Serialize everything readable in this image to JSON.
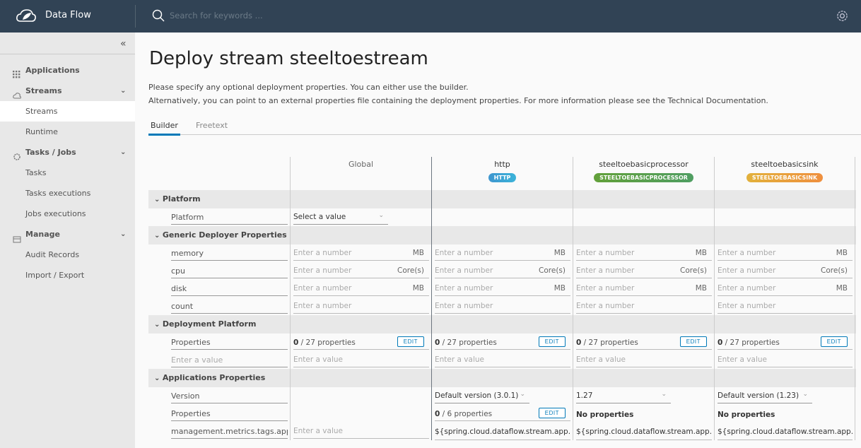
{
  "header": {
    "brand": "Data Flow",
    "search_placeholder": "Search for keywords ..."
  },
  "sidebar": {
    "items": [
      {
        "label": "Applications",
        "type": "group",
        "icon": "grid-icon"
      },
      {
        "label": "Streams",
        "type": "group",
        "icon": "cloud-icon",
        "expanded": true
      },
      {
        "label": "Streams",
        "type": "sub",
        "active": true
      },
      {
        "label": "Runtime",
        "type": "sub"
      },
      {
        "label": "Tasks / Jobs",
        "type": "group",
        "icon": "tasks-icon",
        "expanded": true
      },
      {
        "label": "Tasks",
        "type": "sub"
      },
      {
        "label": "Tasks executions",
        "type": "sub"
      },
      {
        "label": "Jobs executions",
        "type": "sub"
      },
      {
        "label": "Manage",
        "type": "group",
        "icon": "manage-icon",
        "expanded": true
      },
      {
        "label": "Audit Records",
        "type": "sub"
      },
      {
        "label": "Import / Export",
        "type": "sub"
      }
    ]
  },
  "page": {
    "title": "Deploy stream steeltoestream",
    "desc1": "Please specify any optional deployment properties. You can either use the builder.",
    "desc2": "Alternatively, you can point to an external properties file containing the deployment properties. For more information please see the Technical Documentation.",
    "tabs": [
      {
        "label": "Builder",
        "active": true
      },
      {
        "label": "Freetext"
      }
    ]
  },
  "grid": {
    "columns": [
      {
        "title": "Global"
      },
      {
        "title": "http",
        "badge": "HTTP",
        "colors": [
          "#3f96cf",
          "#3bb3d9"
        ]
      },
      {
        "title": "steeltoebasicprocessor",
        "badge": "STEELTOEBASICPROCESSOR",
        "colors": [
          "#62a03a",
          "#4f9e62"
        ]
      },
      {
        "title": "steeltoebasicsink",
        "badge": "STEELTOEBASICSINK",
        "colors": [
          "#e2b13c",
          "#ef8f3e"
        ]
      }
    ],
    "sections": [
      {
        "title": "Platform",
        "rows": [
          {
            "label": "Platform",
            "cells": [
              {
                "type": "select",
                "value": "Select a value"
              },
              {},
              {},
              {}
            ]
          }
        ]
      },
      {
        "title": "Generic Deployer Properties",
        "rows": [
          {
            "label": "memory",
            "cells": [
              {
                "type": "input",
                "placeholder": "Enter a number",
                "unit": "MB"
              },
              {
                "type": "input",
                "placeholder": "Enter a number",
                "unit": "MB"
              },
              {
                "type": "input",
                "placeholder": "Enter a number",
                "unit": "MB"
              },
              {
                "type": "input",
                "placeholder": "Enter a number",
                "unit": "MB"
              }
            ]
          },
          {
            "label": "cpu",
            "cells": [
              {
                "type": "input",
                "placeholder": "Enter a number",
                "unit": "Core(s)"
              },
              {
                "type": "input",
                "placeholder": "Enter a number",
                "unit": "Core(s)"
              },
              {
                "type": "input",
                "placeholder": "Enter a number",
                "unit": "Core(s)"
              },
              {
                "type": "input",
                "placeholder": "Enter a number",
                "unit": "Core(s)"
              }
            ]
          },
          {
            "label": "disk",
            "cells": [
              {
                "type": "input",
                "placeholder": "Enter a number",
                "unit": "MB"
              },
              {
                "type": "input",
                "placeholder": "Enter a number",
                "unit": "MB"
              },
              {
                "type": "input",
                "placeholder": "Enter a number",
                "unit": "MB"
              },
              {
                "type": "input",
                "placeholder": "Enter a number",
                "unit": "MB"
              }
            ]
          },
          {
            "label": "count",
            "cells": [
              {
                "type": "input",
                "placeholder": "Enter a number"
              },
              {
                "type": "input",
                "placeholder": "Enter a number"
              },
              {
                "type": "input",
                "placeholder": "Enter a number"
              },
              {
                "type": "input",
                "placeholder": "Enter a number"
              }
            ]
          }
        ]
      },
      {
        "title": "Deployment Platform",
        "rows": [
          {
            "label": "Properties",
            "cells": [
              {
                "type": "props",
                "count": "0",
                "rest": " / 27 properties",
                "edit": "EDIT"
              },
              {
                "type": "props",
                "count": "0",
                "rest": " / 27 properties",
                "edit": "EDIT"
              },
              {
                "type": "props",
                "count": "0",
                "rest": " / 27 properties",
                "edit": "EDIT"
              },
              {
                "type": "props",
                "count": "0",
                "rest": " / 27 properties",
                "edit": "EDIT"
              }
            ]
          },
          {
            "label_placeholder": "Enter a value",
            "cells": [
              {
                "type": "input",
                "placeholder": "Enter a value"
              },
              {
                "type": "input",
                "placeholder": "Enter a value"
              },
              {
                "type": "input",
                "placeholder": "Enter a value"
              },
              {
                "type": "input",
                "placeholder": "Enter a value"
              }
            ]
          }
        ]
      },
      {
        "title": "Applications Properties",
        "rows": [
          {
            "label": "Version",
            "cells": [
              {},
              {
                "type": "select",
                "value": "Default version (3.0.1)"
              },
              {
                "type": "select",
                "value": "1.27"
              },
              {
                "type": "select",
                "value": "Default version (1.23)"
              }
            ]
          },
          {
            "label": "Properties",
            "cells": [
              {},
              {
                "type": "props",
                "count": "0",
                "rest": " / 6 properties",
                "edit": "EDIT"
              },
              {
                "type": "bold",
                "value": "No properties"
              },
              {
                "type": "bold",
                "value": "No properties"
              }
            ]
          },
          {
            "label": "management.metrics.tags.application",
            "cells": [
              {
                "type": "input",
                "placeholder": "Enter a value"
              },
              {
                "type": "value",
                "value": "${spring.cloud.dataflow.stream.app.type}"
              },
              {
                "type": "value",
                "value": "${spring.cloud.dataflow.stream.app.type}"
              },
              {
                "type": "value",
                "value": "${spring.cloud.dataflow.stream.app.type}"
              }
            ]
          }
        ]
      }
    ]
  }
}
